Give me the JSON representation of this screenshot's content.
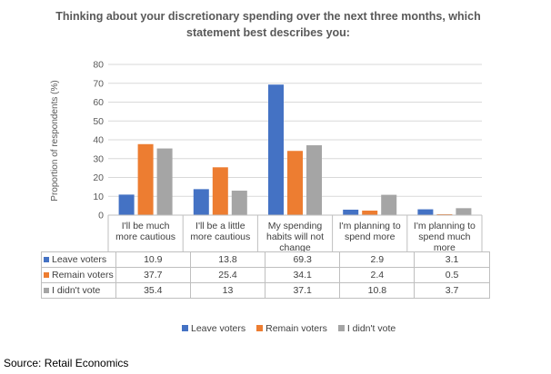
{
  "chart_data": {
    "type": "bar",
    "title": "Thinking about your discretionary spending over the next three months, which statement best describes you:",
    "ylabel": "Proportion of respondents (%)",
    "xlabel": "",
    "ylim": [
      0,
      80
    ],
    "yticks": [
      0,
      10,
      20,
      30,
      40,
      50,
      60,
      70,
      80
    ],
    "grid": true,
    "legend": "bottom",
    "categories": [
      "I'll be much more cautious",
      "I'll be a little more cautious",
      "My spending habits will not change",
      "I'm planning to spend more",
      "I'm planning to spend much more"
    ],
    "category_lines": [
      [
        "I'll be much",
        "more cautious"
      ],
      [
        "I'll be a little",
        "more cautious"
      ],
      [
        "My spending",
        "habits will not",
        "change"
      ],
      [
        "I'm planning to",
        "spend more"
      ],
      [
        "I'm planning to",
        "spend much",
        "more"
      ]
    ],
    "series": [
      {
        "name": "Leave voters",
        "color": "#4472c4",
        "values": [
          10.9,
          13.8,
          69.3,
          2.9,
          3.1
        ]
      },
      {
        "name": "Remain voters",
        "color": "#ed7d31",
        "values": [
          37.7,
          25.4,
          34.1,
          2.4,
          0.5
        ]
      },
      {
        "name": "I didn't vote",
        "color": "#a5a5a5",
        "values": [
          35.4,
          13,
          37.1,
          10.8,
          3.7
        ]
      }
    ]
  },
  "source": "Source: Retail Economics"
}
